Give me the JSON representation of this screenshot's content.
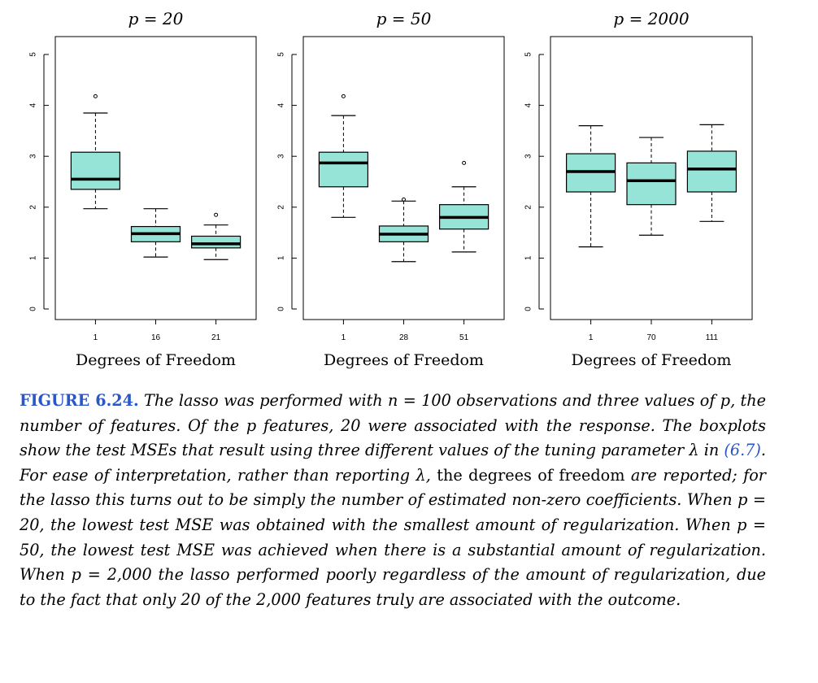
{
  "chart_data": [
    {
      "type": "box",
      "title": "p = 20",
      "xlabel": "Degrees of Freedom",
      "categories": [
        "1",
        "16",
        "21"
      ],
      "yticks": [
        "0",
        "1",
        "2",
        "3",
        "4",
        "5"
      ],
      "ylim": [
        0,
        5
      ],
      "boxes": [
        {
          "whisker_low": 1.97,
          "q1": 2.35,
          "median": 2.55,
          "q3": 3.08,
          "whisker_high": 3.85,
          "outliers": [
            4.18
          ]
        },
        {
          "whisker_low": 1.02,
          "q1": 1.32,
          "median": 1.48,
          "q3": 1.62,
          "whisker_high": 1.97,
          "outliers": []
        },
        {
          "whisker_low": 0.97,
          "q1": 1.2,
          "median": 1.28,
          "q3": 1.43,
          "whisker_high": 1.65,
          "outliers": [
            1.85
          ]
        }
      ]
    },
    {
      "type": "box",
      "title": "p = 50",
      "xlabel": "Degrees of Freedom",
      "categories": [
        "1",
        "28",
        "51"
      ],
      "yticks": [
        "0",
        "1",
        "2",
        "3",
        "4",
        "5"
      ],
      "ylim": [
        0,
        5
      ],
      "boxes": [
        {
          "whisker_low": 1.8,
          "q1": 2.4,
          "median": 2.87,
          "q3": 3.08,
          "whisker_high": 3.8,
          "outliers": [
            4.18
          ]
        },
        {
          "whisker_low": 0.93,
          "q1": 1.32,
          "median": 1.47,
          "q3": 1.63,
          "whisker_high": 2.12,
          "outliers": [
            2.15
          ]
        },
        {
          "whisker_low": 1.12,
          "q1": 1.57,
          "median": 1.8,
          "q3": 2.05,
          "whisker_high": 2.4,
          "outliers": [
            2.87
          ]
        }
      ]
    },
    {
      "type": "box",
      "title": "p = 2000",
      "xlabel": "Degrees of Freedom",
      "categories": [
        "1",
        "70",
        "111"
      ],
      "yticks": [
        "0",
        "1",
        "2",
        "3",
        "4",
        "5"
      ],
      "ylim": [
        0,
        5
      ],
      "boxes": [
        {
          "whisker_low": 1.22,
          "q1": 2.3,
          "median": 2.7,
          "q3": 3.05,
          "whisker_high": 3.6,
          "outliers": []
        },
        {
          "whisker_low": 1.45,
          "q1": 2.05,
          "median": 2.52,
          "q3": 2.87,
          "whisker_high": 3.37,
          "outliers": []
        },
        {
          "whisker_low": 1.72,
          "q1": 2.3,
          "median": 2.75,
          "q3": 3.1,
          "whisker_high": 3.62,
          "outliers": []
        }
      ]
    }
  ],
  "colors": {
    "box_fill": "#96e3d7",
    "caption_label": "#2a57c8"
  },
  "caption": {
    "label": "FIGURE 6.24.",
    "seg1": "The lasso was performed with n = 100 observations and three values of p, the number of features. Of the p features, 20 were associated with the response. The boxplots show the test MSEs that result using three different values of the tuning parameter λ in",
    "ref": "(6.7)",
    "seg2": ". For ease of interpretation, rather than reporting λ,",
    "seg3": "the degrees of freedom",
    "seg4": "are reported; for the lasso this turns out to be simply the number of estimated non-zero coefficients. When p = 20, the lowest test MSE was obtained with the smallest amount of regularization. When p = 50, the lowest test MSE was achieved when there is a substantial amount of regularization. When p = 2,000 the lasso performed poorly regardless of the amount of regularization, due to the fact that only 20 of the 2,000 features truly are associated with the outcome."
  }
}
